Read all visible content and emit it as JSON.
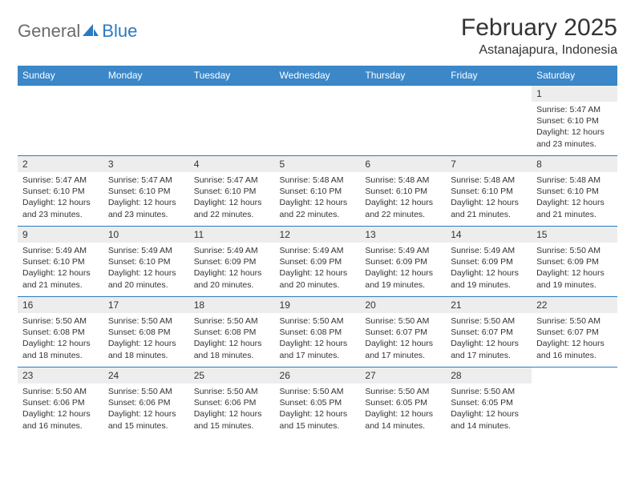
{
  "logo": {
    "part1": "General",
    "part2": "Blue"
  },
  "title": "February 2025",
  "location": "Astanajapura, Indonesia",
  "colors": {
    "headerBg": "#3b87c8",
    "headerText": "#ffffff",
    "dayNumBg": "#ededed",
    "rowBorder": "#2a7ac0",
    "logoGray": "#6b6b6b",
    "logoBlue": "#2a7ac0"
  },
  "weekdays": [
    "Sunday",
    "Monday",
    "Tuesday",
    "Wednesday",
    "Thursday",
    "Friday",
    "Saturday"
  ],
  "weeks": [
    [
      {
        "empty": true
      },
      {
        "empty": true
      },
      {
        "empty": true
      },
      {
        "empty": true
      },
      {
        "empty": true
      },
      {
        "empty": true
      },
      {
        "n": "1",
        "sr": "Sunrise: 5:47 AM",
        "ss": "Sunset: 6:10 PM",
        "dl": "Daylight: 12 hours and 23 minutes."
      }
    ],
    [
      {
        "n": "2",
        "sr": "Sunrise: 5:47 AM",
        "ss": "Sunset: 6:10 PM",
        "dl": "Daylight: 12 hours and 23 minutes."
      },
      {
        "n": "3",
        "sr": "Sunrise: 5:47 AM",
        "ss": "Sunset: 6:10 PM",
        "dl": "Daylight: 12 hours and 23 minutes."
      },
      {
        "n": "4",
        "sr": "Sunrise: 5:47 AM",
        "ss": "Sunset: 6:10 PM",
        "dl": "Daylight: 12 hours and 22 minutes."
      },
      {
        "n": "5",
        "sr": "Sunrise: 5:48 AM",
        "ss": "Sunset: 6:10 PM",
        "dl": "Daylight: 12 hours and 22 minutes."
      },
      {
        "n": "6",
        "sr": "Sunrise: 5:48 AM",
        "ss": "Sunset: 6:10 PM",
        "dl": "Daylight: 12 hours and 22 minutes."
      },
      {
        "n": "7",
        "sr": "Sunrise: 5:48 AM",
        "ss": "Sunset: 6:10 PM",
        "dl": "Daylight: 12 hours and 21 minutes."
      },
      {
        "n": "8",
        "sr": "Sunrise: 5:48 AM",
        "ss": "Sunset: 6:10 PM",
        "dl": "Daylight: 12 hours and 21 minutes."
      }
    ],
    [
      {
        "n": "9",
        "sr": "Sunrise: 5:49 AM",
        "ss": "Sunset: 6:10 PM",
        "dl": "Daylight: 12 hours and 21 minutes."
      },
      {
        "n": "10",
        "sr": "Sunrise: 5:49 AM",
        "ss": "Sunset: 6:10 PM",
        "dl": "Daylight: 12 hours and 20 minutes."
      },
      {
        "n": "11",
        "sr": "Sunrise: 5:49 AM",
        "ss": "Sunset: 6:09 PM",
        "dl": "Daylight: 12 hours and 20 minutes."
      },
      {
        "n": "12",
        "sr": "Sunrise: 5:49 AM",
        "ss": "Sunset: 6:09 PM",
        "dl": "Daylight: 12 hours and 20 minutes."
      },
      {
        "n": "13",
        "sr": "Sunrise: 5:49 AM",
        "ss": "Sunset: 6:09 PM",
        "dl": "Daylight: 12 hours and 19 minutes."
      },
      {
        "n": "14",
        "sr": "Sunrise: 5:49 AM",
        "ss": "Sunset: 6:09 PM",
        "dl": "Daylight: 12 hours and 19 minutes."
      },
      {
        "n": "15",
        "sr": "Sunrise: 5:50 AM",
        "ss": "Sunset: 6:09 PM",
        "dl": "Daylight: 12 hours and 19 minutes."
      }
    ],
    [
      {
        "n": "16",
        "sr": "Sunrise: 5:50 AM",
        "ss": "Sunset: 6:08 PM",
        "dl": "Daylight: 12 hours and 18 minutes."
      },
      {
        "n": "17",
        "sr": "Sunrise: 5:50 AM",
        "ss": "Sunset: 6:08 PM",
        "dl": "Daylight: 12 hours and 18 minutes."
      },
      {
        "n": "18",
        "sr": "Sunrise: 5:50 AM",
        "ss": "Sunset: 6:08 PM",
        "dl": "Daylight: 12 hours and 18 minutes."
      },
      {
        "n": "19",
        "sr": "Sunrise: 5:50 AM",
        "ss": "Sunset: 6:08 PM",
        "dl": "Daylight: 12 hours and 17 minutes."
      },
      {
        "n": "20",
        "sr": "Sunrise: 5:50 AM",
        "ss": "Sunset: 6:07 PM",
        "dl": "Daylight: 12 hours and 17 minutes."
      },
      {
        "n": "21",
        "sr": "Sunrise: 5:50 AM",
        "ss": "Sunset: 6:07 PM",
        "dl": "Daylight: 12 hours and 17 minutes."
      },
      {
        "n": "22",
        "sr": "Sunrise: 5:50 AM",
        "ss": "Sunset: 6:07 PM",
        "dl": "Daylight: 12 hours and 16 minutes."
      }
    ],
    [
      {
        "n": "23",
        "sr": "Sunrise: 5:50 AM",
        "ss": "Sunset: 6:06 PM",
        "dl": "Daylight: 12 hours and 16 minutes."
      },
      {
        "n": "24",
        "sr": "Sunrise: 5:50 AM",
        "ss": "Sunset: 6:06 PM",
        "dl": "Daylight: 12 hours and 15 minutes."
      },
      {
        "n": "25",
        "sr": "Sunrise: 5:50 AM",
        "ss": "Sunset: 6:06 PM",
        "dl": "Daylight: 12 hours and 15 minutes."
      },
      {
        "n": "26",
        "sr": "Sunrise: 5:50 AM",
        "ss": "Sunset: 6:05 PM",
        "dl": "Daylight: 12 hours and 15 minutes."
      },
      {
        "n": "27",
        "sr": "Sunrise: 5:50 AM",
        "ss": "Sunset: 6:05 PM",
        "dl": "Daylight: 12 hours and 14 minutes."
      },
      {
        "n": "28",
        "sr": "Sunrise: 5:50 AM",
        "ss": "Sunset: 6:05 PM",
        "dl": "Daylight: 12 hours and 14 minutes."
      },
      {
        "empty": true
      }
    ]
  ]
}
